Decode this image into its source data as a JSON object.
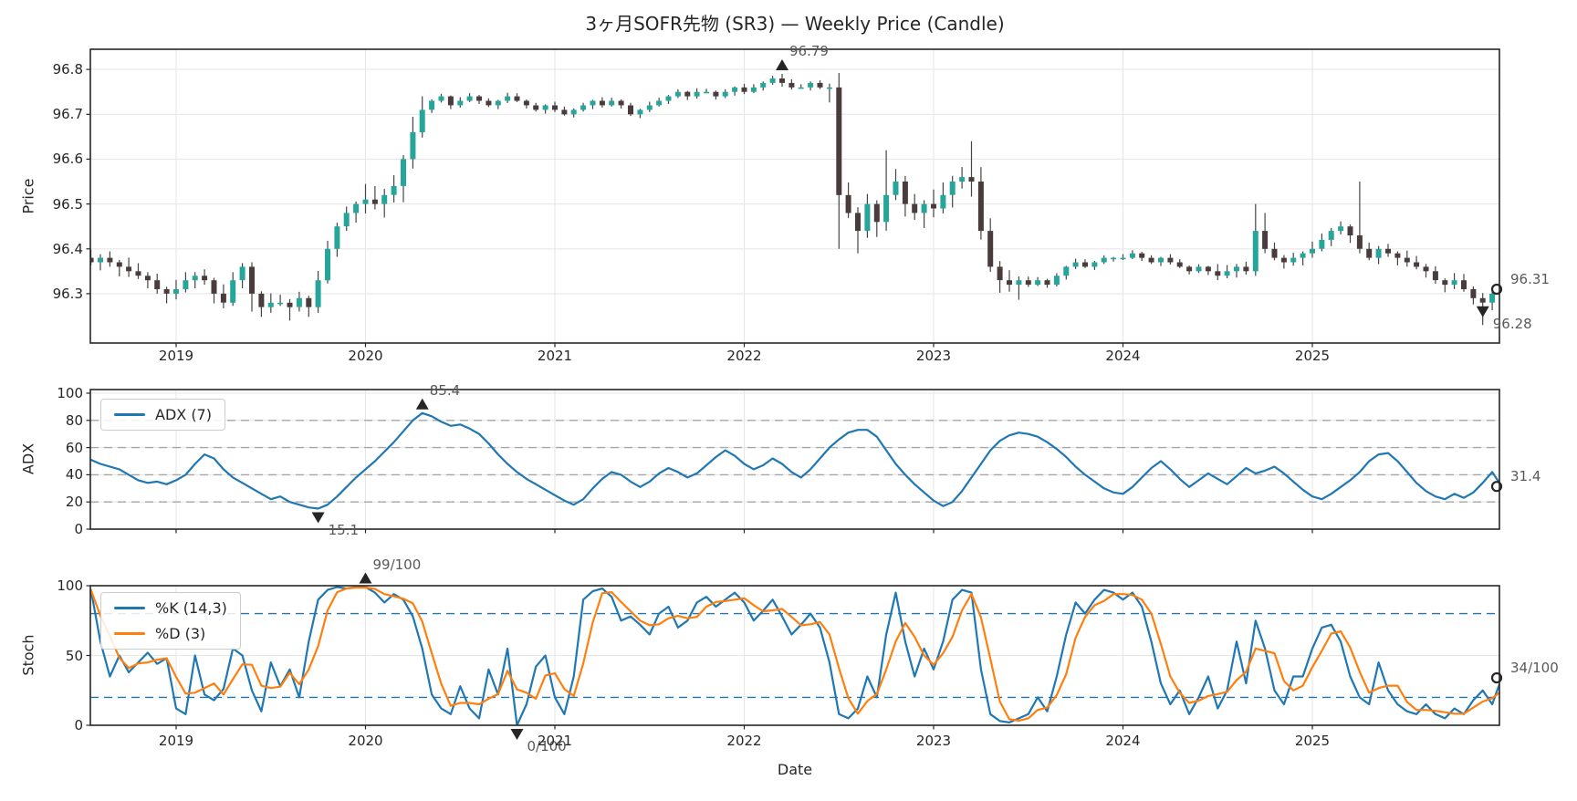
{
  "title": "3ヶ月SOFR先物 (SR3) — Weekly Price (Candle)",
  "axes": {
    "date_label": "Date",
    "price_label": "Price",
    "adx_label": "ADX",
    "stoch_label": "Stoch",
    "years": [
      2019,
      2020,
      2021,
      2022,
      2023,
      2024,
      2025
    ],
    "price_ticks": [
      96.3,
      96.4,
      96.5,
      96.6,
      96.7,
      96.8
    ],
    "adx_ticks": [
      0,
      20,
      40,
      60,
      80,
      100
    ],
    "stoch_ticks": [
      0,
      50,
      100
    ]
  },
  "legend": {
    "adx": "ADX (7)",
    "k": "%K (14,3)",
    "d": "%D (3)"
  },
  "colors": {
    "up": "#26a69a",
    "down": "#4a3c3c",
    "wick": "#454545",
    "adx_line": "#1f77b4",
    "k_line": "#1f77b4",
    "d_line": "#ff7f0e",
    "adx_dashed": "#a6a6a6",
    "stoch_dashed": "#1f77b4",
    "grid": "#e7e7e7",
    "spine": "#262626",
    "annotation": "#595959",
    "marker": "#262626"
  },
  "chart_data": [
    {
      "type": "candle",
      "panel": "price",
      "t_start": 2018.55,
      "t_step": 0.05,
      "ylim": [
        96.19,
        96.845
      ],
      "close": [
        96.37,
        96.38,
        96.37,
        96.36,
        96.35,
        96.34,
        96.33,
        96.31,
        96.3,
        96.31,
        96.33,
        96.34,
        96.33,
        96.3,
        96.28,
        96.33,
        96.36,
        96.3,
        96.27,
        96.28,
        96.28,
        96.27,
        96.29,
        96.27,
        96.33,
        96.4,
        96.45,
        96.48,
        96.5,
        96.51,
        96.5,
        96.52,
        96.54,
        96.6,
        96.66,
        96.71,
        96.73,
        96.74,
        96.72,
        96.73,
        96.74,
        96.73,
        96.72,
        96.73,
        96.74,
        96.73,
        96.72,
        96.71,
        96.72,
        96.71,
        96.7,
        96.71,
        96.72,
        96.73,
        96.72,
        96.73,
        96.72,
        96.7,
        96.71,
        96.72,
        96.73,
        96.74,
        96.75,
        96.74,
        96.75,
        96.75,
        96.74,
        96.75,
        96.76,
        96.75,
        96.76,
        96.77,
        96.78,
        96.77,
        96.76,
        96.76,
        96.77,
        96.76,
        96.76,
        96.52,
        96.48,
        96.44,
        96.5,
        96.46,
        96.52,
        96.55,
        96.5,
        96.48,
        96.5,
        96.49,
        96.52,
        96.55,
        96.56,
        96.55,
        96.44,
        96.36,
        96.33,
        96.32,
        96.33,
        96.32,
        96.33,
        96.32,
        96.34,
        96.36,
        96.37,
        96.36,
        96.37,
        96.38,
        96.38,
        96.38,
        96.39,
        96.38,
        96.37,
        96.38,
        96.37,
        96.36,
        96.35,
        96.36,
        96.35,
        96.34,
        96.35,
        96.36,
        96.35,
        96.44,
        96.4,
        96.38,
        96.37,
        96.38,
        96.39,
        96.4,
        96.42,
        96.44,
        96.45,
        96.43,
        96.4,
        96.38,
        96.4,
        96.39,
        96.38,
        96.37,
        96.36,
        96.35,
        96.33,
        96.32,
        96.33,
        96.31,
        96.29,
        96.28,
        96.3,
        96.31
      ],
      "wick_eras": [
        [
          2018.5,
          2020.0,
          0.018
        ],
        [
          2020.0,
          2020.35,
          0.03
        ],
        [
          2020.35,
          2022.45,
          0.007
        ],
        [
          2022.45,
          2023.5,
          0.028
        ],
        [
          2023.5,
          2024.5,
          0.007
        ],
        [
          2024.5,
          2026.2,
          0.014
        ]
      ],
      "overrides": [
        {
          "i": 17,
          "h": 96.37,
          "l": 96.26
        },
        {
          "i": 21,
          "l": 96.24
        },
        {
          "i": 73,
          "h": 96.79
        },
        {
          "i": 79,
          "l": 96.4
        },
        {
          "i": 81,
          "l": 96.39
        },
        {
          "i": 84,
          "h": 96.62
        },
        {
          "i": 93,
          "h": 96.64
        },
        {
          "i": 123,
          "h": 96.5,
          "l": 96.34
        },
        {
          "i": 124,
          "h": 96.48
        },
        {
          "i": 134,
          "h": 96.55
        },
        {
          "i": 147,
          "l": 96.23
        }
      ],
      "markers": [
        {
          "kind": "max",
          "t": 2022.2,
          "v": 96.79,
          "label": "96.79"
        },
        {
          "kind": "min",
          "t": 2025.9,
          "v": 96.28,
          "label": "96.28"
        },
        {
          "kind": "last",
          "t": 2026.0,
          "v": 96.31,
          "label": "96.31"
        }
      ]
    },
    {
      "type": "line",
      "panel": "adx",
      "t_start": 2018.55,
      "t_step": 0.05,
      "ylim": [
        0,
        102.7
      ],
      "dashed_levels": [
        20,
        40,
        60,
        80
      ],
      "dash_color_key": "adx_dashed",
      "series": [
        {
          "name": "ADX (7)",
          "color_key": "adx_line",
          "values": [
            51,
            48,
            46,
            44,
            40,
            36,
            34,
            35,
            33,
            36,
            40,
            48,
            55,
            52,
            44,
            38,
            34,
            30,
            26,
            22,
            24,
            20,
            18,
            16,
            15.1,
            18,
            24,
            31,
            38,
            44,
            50,
            57,
            64,
            72,
            80,
            85.4,
            83,
            79,
            76,
            77,
            74,
            70,
            63,
            55,
            48,
            42,
            37,
            33,
            29,
            25,
            21,
            18,
            22,
            30,
            37,
            42,
            40,
            35,
            31,
            35,
            41,
            45,
            42,
            38,
            41,
            47,
            53,
            58,
            54,
            48,
            44,
            47,
            52,
            48,
            42,
            38,
            44,
            52,
            60,
            66,
            71,
            73,
            73,
            68,
            58,
            48,
            40,
            33,
            27,
            21,
            17,
            20,
            28,
            38,
            48,
            58,
            65,
            69,
            71,
            70,
            68,
            64,
            59,
            53,
            46,
            40,
            35,
            30,
            27,
            26,
            31,
            38,
            45,
            50,
            44,
            37,
            31,
            36,
            41,
            37,
            33,
            39,
            45,
            41,
            43,
            46,
            41,
            35,
            29,
            24,
            22,
            26,
            31,
            36,
            42,
            50,
            55,
            56,
            50,
            42,
            34,
            28,
            24,
            22,
            26,
            23,
            27,
            34,
            42,
            31.4
          ]
        }
      ],
      "markers": [
        {
          "kind": "max",
          "t": 2020.3,
          "v": 85.4,
          "label": "85.4"
        },
        {
          "kind": "min",
          "t": 2019.75,
          "v": 15.1,
          "label": "15.1"
        },
        {
          "kind": "last",
          "t": 2026.0,
          "v": 31.4,
          "label": "31.4"
        }
      ]
    },
    {
      "type": "line",
      "panel": "stoch",
      "t_start": 2018.55,
      "t_step": 0.05,
      "ylim": [
        0,
        100
      ],
      "dashed_levels": [
        20,
        80
      ],
      "dash_color_key": "stoch_dashed",
      "d_smoothing": 3,
      "series": [
        {
          "name": "%K (14,3)",
          "color_key": "k_line",
          "values": [
            97,
            60,
            35,
            50,
            38,
            45,
            52,
            44,
            48,
            12,
            8,
            50,
            22,
            18,
            26,
            55,
            50,
            25,
            10,
            45,
            28,
            40,
            20,
            60,
            90,
            97,
            99,
            98,
            99,
            99,
            95,
            88,
            94,
            90,
            78,
            55,
            22,
            12,
            8,
            28,
            12,
            5,
            40,
            22,
            55,
            0,
            15,
            42,
            50,
            20,
            8,
            35,
            90,
            96,
            98,
            92,
            75,
            78,
            72,
            65,
            80,
            85,
            70,
            75,
            88,
            92,
            85,
            90,
            95,
            88,
            75,
            82,
            90,
            78,
            65,
            72,
            80,
            70,
            45,
            8,
            5,
            12,
            35,
            20,
            65,
            95,
            60,
            35,
            55,
            40,
            60,
            90,
            97,
            95,
            40,
            8,
            3,
            2,
            5,
            8,
            20,
            10,
            35,
            65,
            88,
            80,
            90,
            97,
            95,
            90,
            95,
            85,
            60,
            30,
            15,
            25,
            8,
            20,
            35,
            12,
            25,
            60,
            30,
            75,
            55,
            25,
            15,
            35,
            35,
            55,
            70,
            72,
            60,
            35,
            20,
            15,
            45,
            25,
            15,
            10,
            8,
            15,
            8,
            5,
            12,
            8,
            18,
            25,
            15,
            34
          ]
        }
      ],
      "markers": [
        {
          "kind": "max",
          "t": 2020.0,
          "v": 99,
          "label": "99/100"
        },
        {
          "kind": "min",
          "t": 2020.8,
          "v": 0,
          "label": "0/100"
        },
        {
          "kind": "last",
          "t": 2026.0,
          "v": 34,
          "label": "34/100"
        }
      ]
    }
  ]
}
